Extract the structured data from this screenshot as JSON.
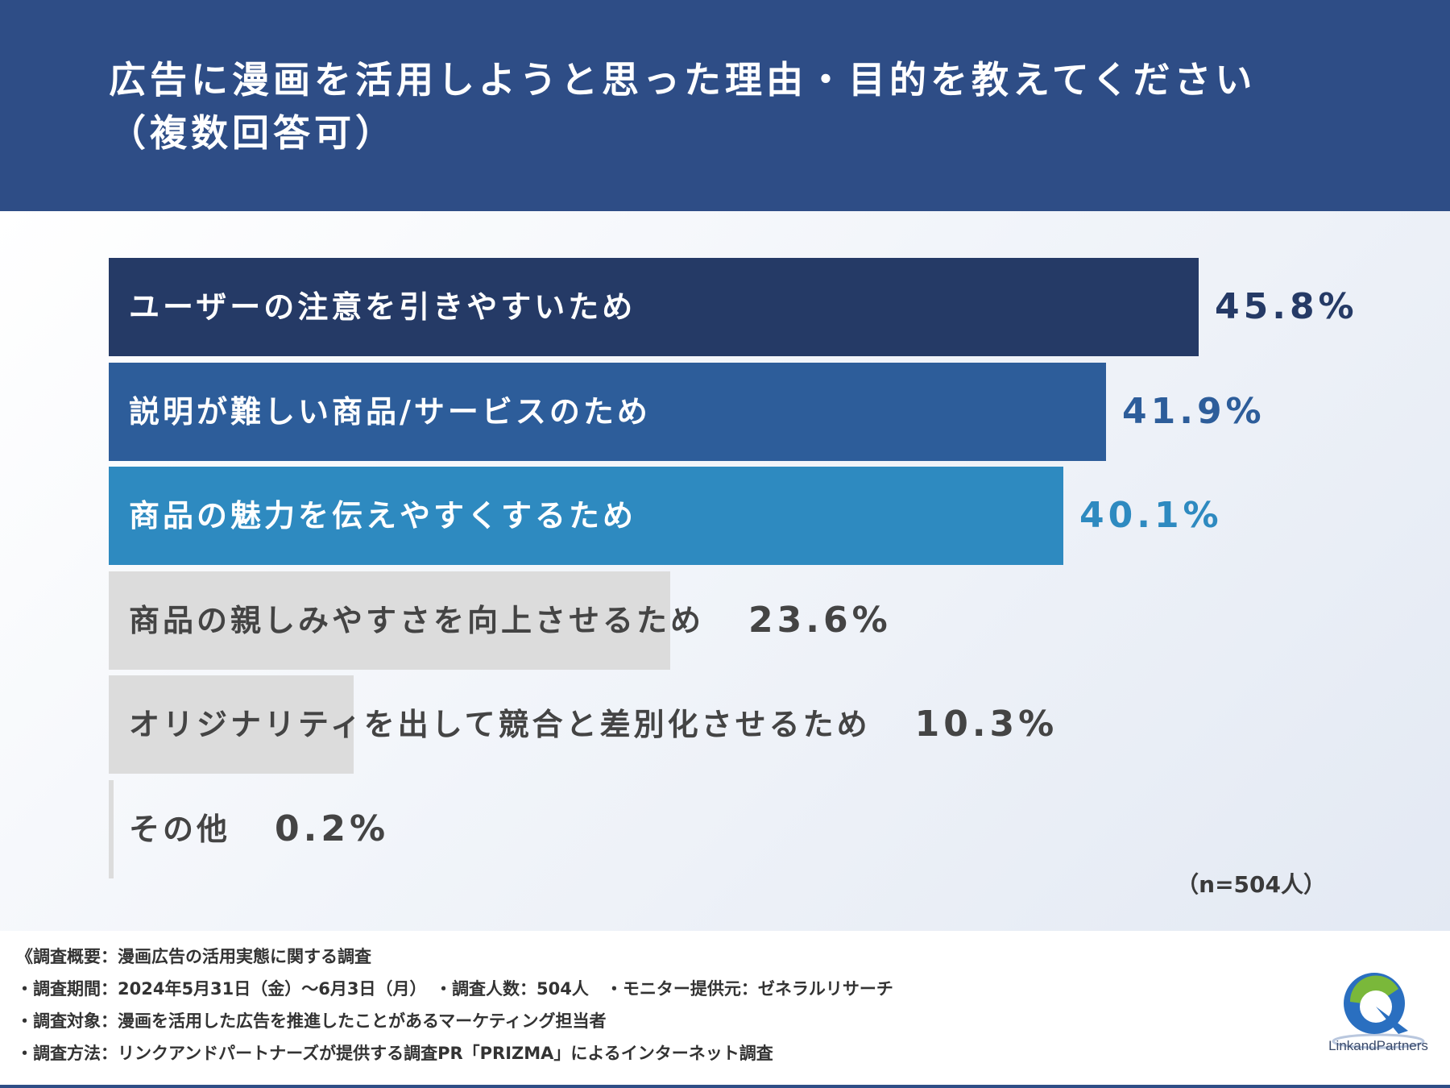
{
  "title": {
    "line1": "広告に漫画を活用しようと思った理由・目的を教えてください",
    "line2": "（複数回答可）"
  },
  "chart_data": {
    "type": "bar",
    "orientation": "horizontal",
    "xlim": [
      0,
      45.8
    ],
    "categories": [
      "ユーザーの注意を引きやすいため",
      "説明が難しい商品/サービスのため",
      "商品の魅力を伝えやすくするため",
      "商品の親しみやすさを向上させるため",
      "オリジナリティを出して競合と差別化させるため",
      "その他"
    ],
    "values": [
      45.8,
      41.9,
      40.1,
      23.6,
      10.3,
      0.2
    ],
    "value_labels": [
      "45.8%",
      "41.9%",
      "40.1%",
      "23.6%",
      "10.3%",
      "0.2%"
    ],
    "bar_colors": [
      "#253a66",
      "#2d5d9a",
      "#2e8ac0",
      "#dcdcdc",
      "#dcdcdc",
      "#dcdcdc"
    ],
    "label_colors": [
      "#ffffff",
      "#ffffff",
      "#ffffff",
      "#444444",
      "#444444",
      "#444444"
    ],
    "value_colors": [
      "#253a66",
      "#2d5d9a",
      "#2e8ac0",
      "#444444",
      "#444444",
      "#444444"
    ],
    "sample_note": "（n=504人）"
  },
  "footer": {
    "lines": [
      "《調査概要：漫画広告の活用実態に関する調査",
      "・調査期間：2024年5月31日（金）〜6月3日（月）　・調査人数：504人　・モニター提供元：ゼネラルリサーチ",
      "・調査対象：漫画を活用した広告を推進したことがあるマーケティング担当者",
      "・調査方法：リンクアンドパートナーズが提供する調査PR「PRIZMA」によるインターネット調査"
    ],
    "logo_text": "LinkandPartners"
  },
  "colors": {
    "header_bg": "#2e4d86",
    "logo_blue": "#2a6fc0",
    "logo_green": "#7ab83a"
  }
}
